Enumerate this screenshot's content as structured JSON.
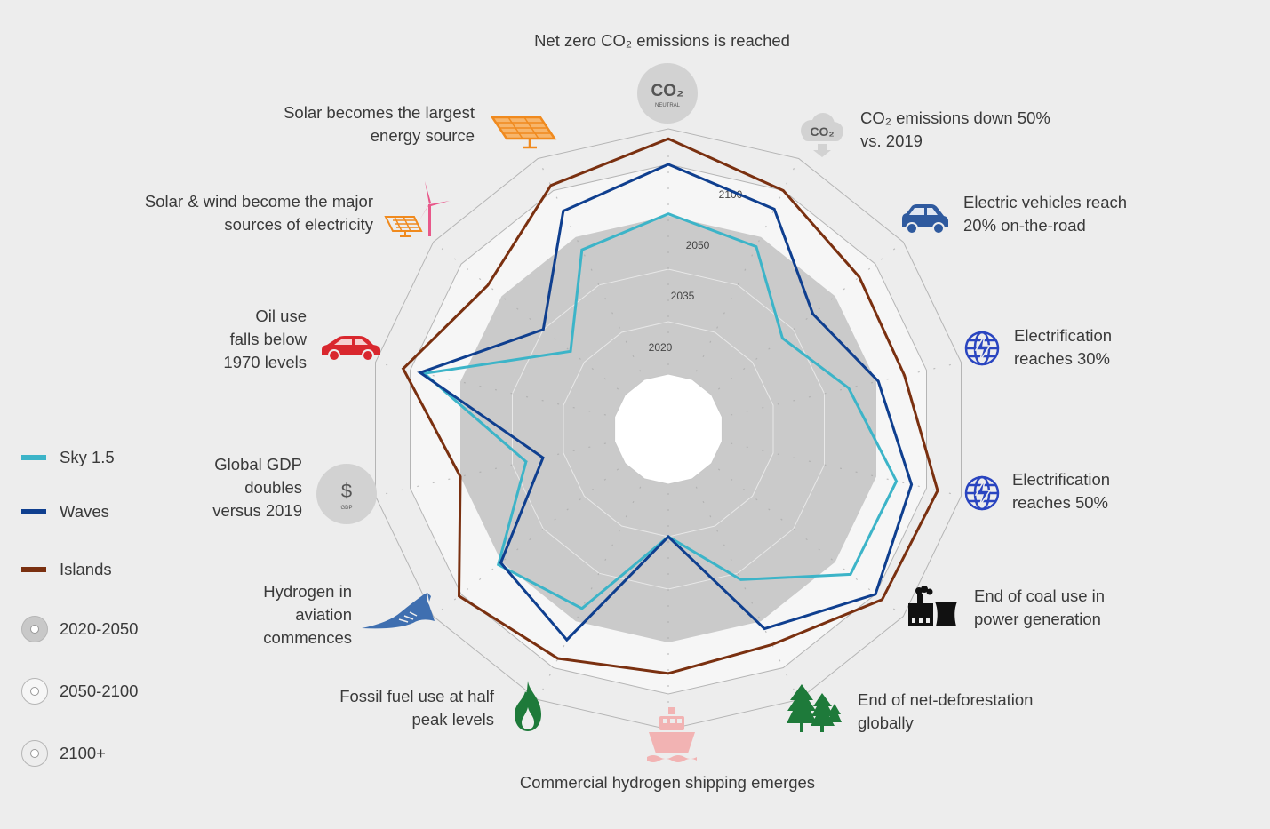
{
  "chart_data": {
    "type": "radar",
    "axes": [
      "Net zero CO₂ emissions is reached",
      "CO₂ emissions down 50%\nvs. 2019",
      "Electric vehicles reach\n20% on-the-road",
      "Electrification\nreaches 30%",
      "Electrification\nreaches 50%",
      "End of coal use in\npower generation",
      "End of net-deforestation\nglobally",
      "Commercial hydrogen shipping emerges",
      "Fossil fuel use at half\npeak levels",
      "Hydrogen in\naviation\ncommences",
      "Global GDP\ndoubles\nversus 2019",
      "Oil use\nfalls below\n1970 levels",
      "Solar & wind become the major\nsources of electricity",
      "Solar becomes the largest\nenergy source"
    ],
    "ring_labels": [
      "2020",
      "2035",
      "2050",
      "2100"
    ],
    "series": [
      {
        "name": "Sky 1.5",
        "color": "#3cb4c8",
        "values": [
          2052,
          2047,
          2031,
          2042,
          2070,
          2069,
          2037,
          2020,
          2046,
          2054,
          2031,
          2086,
          2025,
          2046
        ]
      },
      {
        "name": "Waves",
        "color": "#0f3f8f",
        "values": [
          2100,
          2080,
          2042,
          2052,
          2085,
          2100,
          2058,
          2020,
          2070,
          2051,
          2026,
          2090,
          2035,
          2078
        ]
      },
      {
        "name": "Islands",
        "color": "#7a3010",
        "values": [
          2118,
          2100,
          2080,
          2078,
          2108,
          2106,
          2075,
          2080,
          2090,
          2102,
          2050,
          2105,
          2067,
          2104
        ]
      }
    ]
  },
  "legend": {
    "series": [
      {
        "name": "Sky 1.5",
        "color": "#3cb4c8"
      },
      {
        "name": "Waves",
        "color": "#0f3f8f"
      },
      {
        "name": "Islands",
        "color": "#7a3010"
      }
    ],
    "rings": [
      "2020-2050",
      "2050-2100",
      "2100+"
    ]
  },
  "icons": {
    "co2_neutral": {
      "name": "co2-neutral-icon",
      "text": "CO₂",
      "sub": "NEUTRAL",
      "color": "#d2d2d2"
    },
    "co2_cloud": {
      "name": "co2-cloud-icon",
      "text": "CO₂",
      "color": "#d2d2d2"
    },
    "ev": {
      "name": "electric-car-icon",
      "color": "#2f5a9e"
    },
    "elec30": {
      "name": "electricity-globe-icon",
      "color": "#2a45c0"
    },
    "elec50": {
      "name": "electricity-globe-icon",
      "color": "#2a45c0"
    },
    "coal": {
      "name": "coal-power-plant-icon",
      "color": "#111111"
    },
    "forest": {
      "name": "forest-icon",
      "color": "#1e7a3a"
    },
    "ship": {
      "name": "hydrogen-ship-icon",
      "color": "#f2b3b3"
    },
    "flame": {
      "name": "gas-flame-icon",
      "color": "#1e7a3a"
    },
    "ray": {
      "name": "manta-ray-aviation-icon",
      "color": "#3f6fb0"
    },
    "gdp": {
      "name": "gdp-dollar-icon",
      "text": "$",
      "sub": "GDP",
      "color": "#d2d2d2"
    },
    "car": {
      "name": "oil-car-icon",
      "color": "#d9272e"
    },
    "solar_wind": {
      "name": "solar-wind-icon",
      "color": "#f08a1e",
      "turbine_color": "#e8588a"
    },
    "solar": {
      "name": "solar-panel-icon",
      "color": "#f08a1e"
    }
  }
}
